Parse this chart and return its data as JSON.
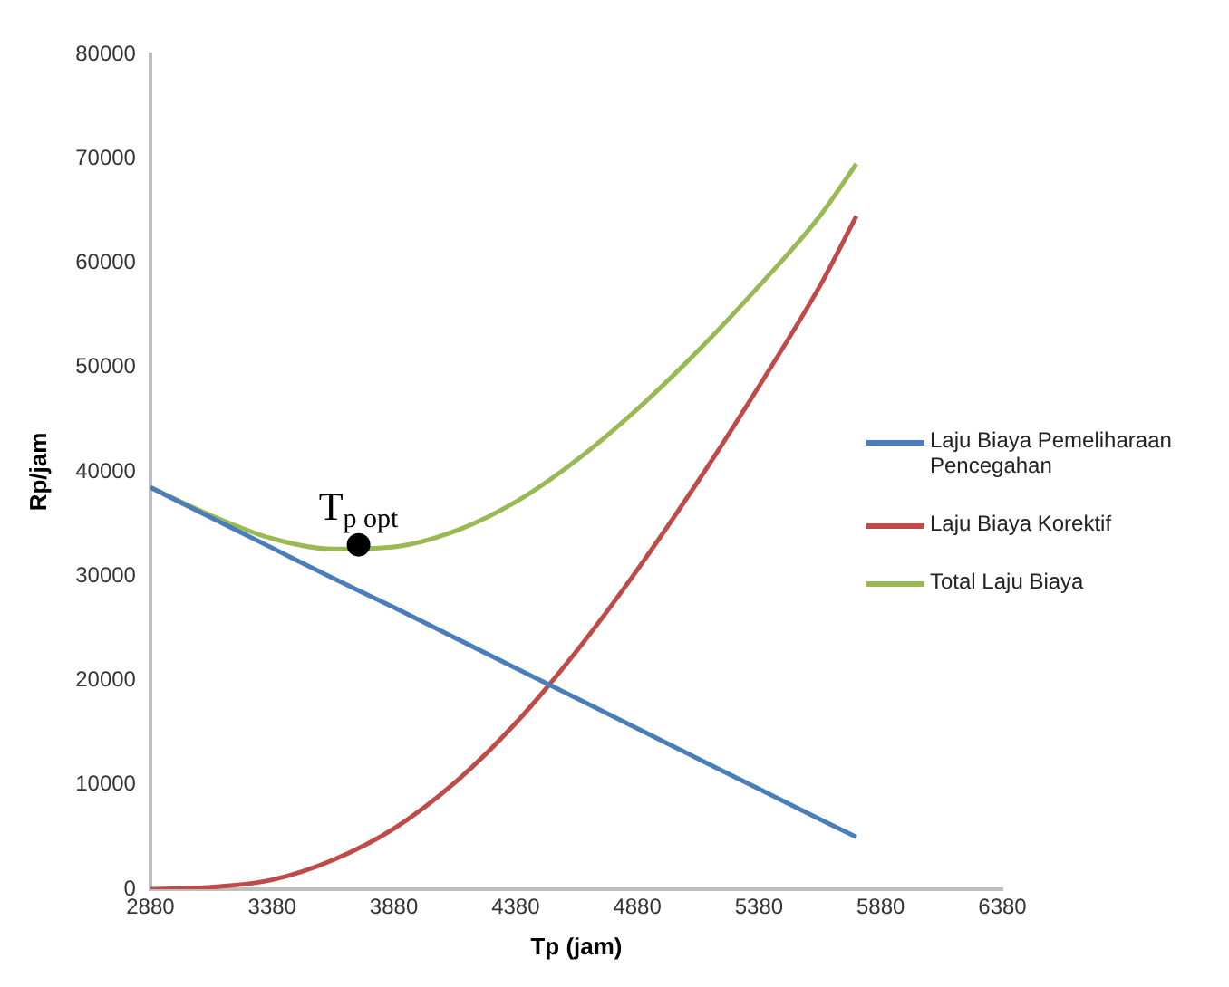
{
  "chart_data": {
    "type": "line",
    "xlabel": "Tp (jam)",
    "ylabel": "Rp/jam",
    "x": [
      2880,
      3130,
      3380,
      3630,
      3880,
      4130,
      4380,
      4630,
      4880,
      5130,
      5380,
      5630,
      5780
    ],
    "series": [
      {
        "name": "Laju Biaya Pemeliharaan Pencegahan",
        "color": "#4a7ebb",
        "values": [
          38500,
          35600,
          32700,
          29800,
          27000,
          24100,
          21200,
          18300,
          15400,
          12500,
          9600,
          6700,
          5000
        ]
      },
      {
        "name": "Laju Biaya Korektif",
        "color": "#be4b48",
        "values": [
          0,
          200,
          900,
          2800,
          5800,
          10200,
          15900,
          22800,
          30600,
          39100,
          48200,
          57800,
          64500
        ]
      },
      {
        "name": "Total Laju Biaya",
        "color": "#98b954",
        "values": [
          38500,
          35800,
          33600,
          32600,
          32800,
          34300,
          37100,
          41100,
          46000,
          51600,
          57800,
          64500,
          69500
        ]
      },
      {
        "type": "scatter",
        "color": "#000000",
        "marker": "circle",
        "x": [
          3735
        ],
        "values": [
          33000
        ]
      }
    ],
    "annotations": [
      {
        "text": "T$_{p opt}$",
        "x": 3735,
        "y": 33000
      }
    ],
    "xlim": [
      2880,
      6380
    ],
    "xticks": [
      2880,
      3380,
      3880,
      4380,
      4880,
      5380,
      5880,
      6380
    ],
    "ylim": [
      0,
      80000
    ],
    "yticks": [
      0,
      10000,
      20000,
      30000,
      40000,
      50000,
      60000,
      70000,
      80000
    ],
    "grid": false,
    "legend": "right",
    "marker": "none"
  }
}
